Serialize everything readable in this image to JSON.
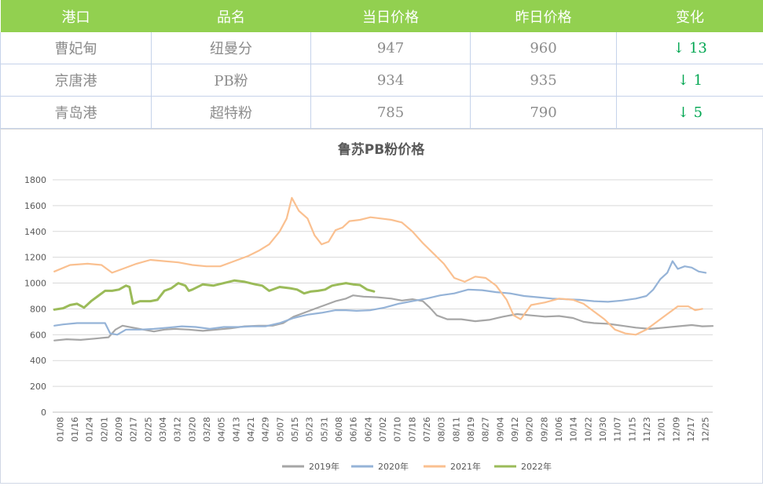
{
  "table": {
    "headers": [
      "港口",
      "品名",
      "当日价格",
      "昨日价格",
      "变化"
    ],
    "rows": [
      {
        "port": "曹妃甸",
        "product": "纽曼分",
        "today": "947",
        "yesterday": "960",
        "change": "↓ 13"
      },
      {
        "port": "京唐港",
        "product": "PB粉",
        "today": "934",
        "yesterday": "935",
        "change": "↓ 1"
      },
      {
        "port": "青岛港",
        "product": "超特粉",
        "today": "785",
        "yesterday": "790",
        "change": "↓ 5"
      }
    ]
  },
  "chart_data": {
    "type": "line",
    "title": "鲁苏PB粉价格",
    "xlabel": "",
    "ylabel": "",
    "ylim": [
      0,
      1800
    ],
    "yticks": [
      "0",
      "200",
      "400",
      "600",
      "800",
      "1000",
      "1200",
      "1400",
      "1600",
      "1800"
    ],
    "xticks": [
      "01/08",
      "01/16",
      "01/24",
      "02/01",
      "02/09",
      "02/17",
      "02/25",
      "03/04",
      "03/12",
      "03/20",
      "03/28",
      "04/05",
      "04/13",
      "04/21",
      "04/29",
      "05/07",
      "05/15",
      "05/23",
      "05/31",
      "06/08",
      "06/16",
      "06/24",
      "07/02",
      "07/10",
      "07/18",
      "07/26",
      "08/03",
      "08/11",
      "08/19",
      "08/27",
      "09/04",
      "09/12",
      "09/20",
      "09/28",
      "10/06",
      "10/14",
      "10/22",
      "10/30",
      "11/07",
      "11/15",
      "11/23",
      "12/01",
      "12/09",
      "12/17",
      "12/25"
    ],
    "grid": true,
    "legend_position": "bottom",
    "series": [
      {
        "name": "2019年",
        "color": "#a6a6a6",
        "points": [
          [
            1,
            555
          ],
          [
            8,
            565
          ],
          [
            16,
            560
          ],
          [
            24,
            570
          ],
          [
            32,
            580
          ],
          [
            36,
            640
          ],
          [
            40,
            670
          ],
          [
            46,
            655
          ],
          [
            52,
            640
          ],
          [
            58,
            625
          ],
          [
            64,
            640
          ],
          [
            70,
            645
          ],
          [
            78,
            640
          ],
          [
            86,
            630
          ],
          [
            94,
            640
          ],
          [
            102,
            650
          ],
          [
            110,
            665
          ],
          [
            118,
            670
          ],
          [
            126,
            670
          ],
          [
            132,
            690
          ],
          [
            138,
            740
          ],
          [
            144,
            770
          ],
          [
            150,
            800
          ],
          [
            156,
            830
          ],
          [
            162,
            860
          ],
          [
            168,
            880
          ],
          [
            172,
            905
          ],
          [
            178,
            895
          ],
          [
            186,
            890
          ],
          [
            194,
            880
          ],
          [
            200,
            865
          ],
          [
            206,
            875
          ],
          [
            212,
            860
          ],
          [
            216,
            810
          ],
          [
            220,
            750
          ],
          [
            226,
            720
          ],
          [
            234,
            720
          ],
          [
            242,
            705
          ],
          [
            250,
            715
          ],
          [
            258,
            740
          ],
          [
            266,
            760
          ],
          [
            274,
            750
          ],
          [
            282,
            740
          ],
          [
            290,
            745
          ],
          [
            298,
            730
          ],
          [
            304,
            700
          ],
          [
            310,
            690
          ],
          [
            318,
            685
          ],
          [
            326,
            670
          ],
          [
            334,
            655
          ],
          [
            342,
            645
          ],
          [
            350,
            655
          ],
          [
            358,
            665
          ],
          [
            366,
            675
          ],
          [
            372,
            665
          ],
          [
            378,
            668
          ]
        ]
      },
      {
        "name": "2020年",
        "color": "#95b3d7",
        "points": [
          [
            1,
            670
          ],
          [
            6,
            680
          ],
          [
            14,
            690
          ],
          [
            22,
            690
          ],
          [
            30,
            690
          ],
          [
            33,
            610
          ],
          [
            37,
            600
          ],
          [
            42,
            640
          ],
          [
            50,
            640
          ],
          [
            58,
            645
          ],
          [
            66,
            655
          ],
          [
            74,
            665
          ],
          [
            82,
            660
          ],
          [
            90,
            645
          ],
          [
            98,
            660
          ],
          [
            106,
            660
          ],
          [
            114,
            665
          ],
          [
            122,
            665
          ],
          [
            130,
            690
          ],
          [
            138,
            730
          ],
          [
            146,
            755
          ],
          [
            154,
            770
          ],
          [
            162,
            790
          ],
          [
            168,
            790
          ],
          [
            174,
            785
          ],
          [
            182,
            790
          ],
          [
            190,
            810
          ],
          [
            198,
            840
          ],
          [
            206,
            860
          ],
          [
            214,
            880
          ],
          [
            222,
            905
          ],
          [
            230,
            920
          ],
          [
            238,
            950
          ],
          [
            246,
            945
          ],
          [
            254,
            930
          ],
          [
            262,
            920
          ],
          [
            270,
            900
          ],
          [
            278,
            890
          ],
          [
            286,
            880
          ],
          [
            294,
            875
          ],
          [
            302,
            870
          ],
          [
            310,
            860
          ],
          [
            318,
            855
          ],
          [
            326,
            865
          ],
          [
            334,
            880
          ],
          [
            340,
            900
          ],
          [
            344,
            950
          ],
          [
            348,
            1030
          ],
          [
            352,
            1080
          ],
          [
            355,
            1170
          ],
          [
            358,
            1110
          ],
          [
            362,
            1130
          ],
          [
            366,
            1120
          ],
          [
            370,
            1090
          ],
          [
            374,
            1080
          ]
        ]
      },
      {
        "name": "2021年",
        "color": "#fac090",
        "points": [
          [
            1,
            1090
          ],
          [
            10,
            1140
          ],
          [
            20,
            1150
          ],
          [
            28,
            1140
          ],
          [
            34,
            1080
          ],
          [
            40,
            1110
          ],
          [
            48,
            1150
          ],
          [
            56,
            1180
          ],
          [
            64,
            1170
          ],
          [
            72,
            1160
          ],
          [
            80,
            1140
          ],
          [
            88,
            1130
          ],
          [
            96,
            1130
          ],
          [
            104,
            1170
          ],
          [
            112,
            1210
          ],
          [
            118,
            1250
          ],
          [
            124,
            1300
          ],
          [
            130,
            1400
          ],
          [
            134,
            1500
          ],
          [
            137,
            1660
          ],
          [
            141,
            1560
          ],
          [
            146,
            1500
          ],
          [
            150,
            1370
          ],
          [
            154,
            1300
          ],
          [
            158,
            1320
          ],
          [
            162,
            1410
          ],
          [
            166,
            1430
          ],
          [
            170,
            1480
          ],
          [
            176,
            1490
          ],
          [
            182,
            1510
          ],
          [
            188,
            1500
          ],
          [
            194,
            1490
          ],
          [
            200,
            1470
          ],
          [
            206,
            1400
          ],
          [
            212,
            1310
          ],
          [
            218,
            1230
          ],
          [
            224,
            1150
          ],
          [
            230,
            1040
          ],
          [
            236,
            1010
          ],
          [
            242,
            1050
          ],
          [
            248,
            1040
          ],
          [
            254,
            980
          ],
          [
            260,
            870
          ],
          [
            264,
            750
          ],
          [
            268,
            720
          ],
          [
            274,
            830
          ],
          [
            282,
            850
          ],
          [
            290,
            880
          ],
          [
            298,
            870
          ],
          [
            304,
            840
          ],
          [
            310,
            780
          ],
          [
            316,
            720
          ],
          [
            322,
            640
          ],
          [
            328,
            610
          ],
          [
            334,
            600
          ],
          [
            340,
            640
          ],
          [
            346,
            700
          ],
          [
            352,
            760
          ],
          [
            358,
            820
          ],
          [
            364,
            820
          ],
          [
            368,
            790
          ],
          [
            372,
            800
          ]
        ]
      },
      {
        "name": "2022年",
        "color": "#9bbb59",
        "points": [
          [
            1,
            795
          ],
          [
            6,
            805
          ],
          [
            10,
            830
          ],
          [
            14,
            840
          ],
          [
            18,
            810
          ],
          [
            22,
            860
          ],
          [
            26,
            900
          ],
          [
            30,
            940
          ],
          [
            34,
            940
          ],
          [
            38,
            950
          ],
          [
            42,
            980
          ],
          [
            44,
            970
          ],
          [
            46,
            840
          ],
          [
            50,
            860
          ],
          [
            56,
            860
          ],
          [
            60,
            870
          ],
          [
            64,
            940
          ],
          [
            68,
            960
          ],
          [
            72,
            1000
          ],
          [
            76,
            980
          ],
          [
            78,
            940
          ],
          [
            80,
            950
          ],
          [
            86,
            990
          ],
          [
            92,
            980
          ],
          [
            98,
            1000
          ],
          [
            104,
            1020
          ],
          [
            110,
            1010
          ],
          [
            116,
            990
          ],
          [
            120,
            980
          ],
          [
            124,
            940
          ],
          [
            130,
            970
          ],
          [
            136,
            960
          ],
          [
            140,
            950
          ],
          [
            144,
            920
          ],
          [
            148,
            935
          ],
          [
            152,
            940
          ],
          [
            156,
            950
          ],
          [
            160,
            980
          ],
          [
            164,
            990
          ],
          [
            168,
            1000
          ],
          [
            172,
            990
          ],
          [
            176,
            985
          ],
          [
            180,
            950
          ],
          [
            184,
            935
          ]
        ]
      }
    ]
  }
}
